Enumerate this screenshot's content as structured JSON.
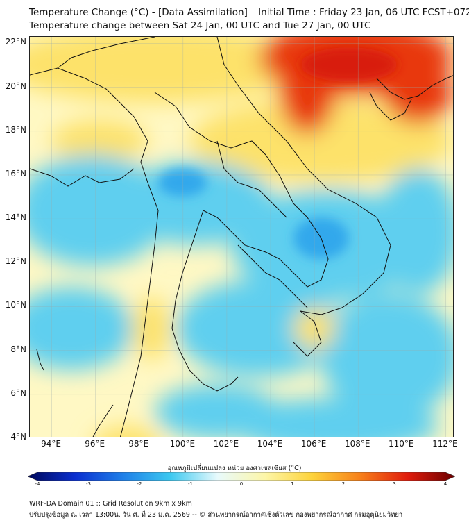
{
  "title": {
    "line1": "Temperature Change (°C) - [Data Assimilation] _ Initial Time : Friday 23 Jan, 06 UTC FCST+072",
    "line2": "Temperature change between Sat 24 Jan, 00 UTC and Tue 27 Jan, 00 UTC"
  },
  "map": {
    "lat_ticks": [
      "22°N",
      "20°N",
      "18°N",
      "16°N",
      "14°N",
      "12°N",
      "10°N",
      "8°N",
      "6°N",
      "4°N"
    ],
    "lon_ticks": [
      "94°E",
      "96°E",
      "98°E",
      "100°E",
      "102°E",
      "104°E",
      "106°E",
      "108°E",
      "110°E",
      "112°E"
    ],
    "lat_range": [
      4,
      22.3
    ],
    "lon_range": [
      93,
      112.4
    ],
    "colors": {
      "ocean_base": "#fff8c4",
      "cool": "#5fcfef",
      "warm": "#fde26a",
      "hot": "#e8380c",
      "border": "#111111"
    }
  },
  "colorbar": {
    "title": "อุณหภูมิเปลี่ยนแปลง หน่วย องศาเซลเซียส (°C)",
    "ticks": [
      "-4",
      "-3",
      "-2",
      "-1",
      "0",
      "1",
      "2",
      "3",
      "4"
    ],
    "range": [
      -4,
      4
    ],
    "stops": [
      "#00085a",
      "#0a2fd0",
      "#1f7fe8",
      "#3cc8f0",
      "#e8fafc",
      "#fdf6a8",
      "#fdd23a",
      "#f7801a",
      "#e01c0c",
      "#6b0000"
    ]
  },
  "footer": {
    "line1": "WRF-DA Domain 01 :: Grid Resolution 9km x 9km",
    "line2": "ปรับปรุงข้อมูล ณ เวลา 13:00น. วัน ศ. ที่ 23 ม.ค. 2569 -- © ส่วนพยากรณ์อากาศเชิงตัวเลข กองพยากรณ์อากาศ กรมอุตุนิยมวิทยา"
  }
}
